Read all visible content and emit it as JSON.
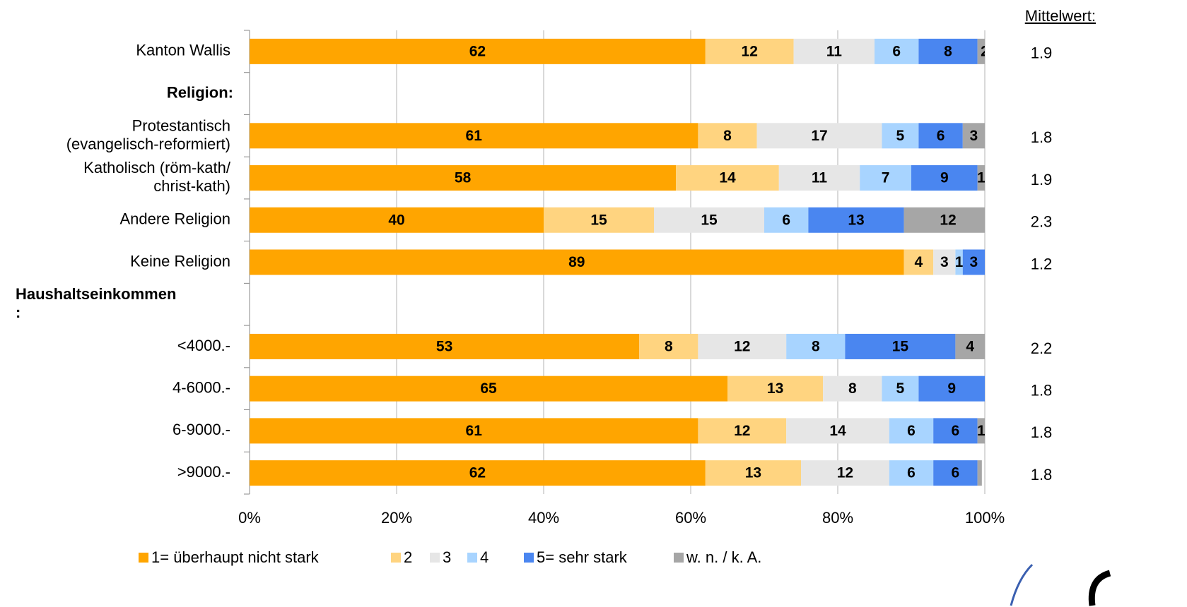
{
  "chart_data": {
    "type": "stacked_barh",
    "categories": [
      "Kanton Wallis",
      "Religion:",
      "Protestantisch\n(evangelisch-reformiert)",
      "Katholisch (röm-kath/\nchrist-kath)",
      "Andere Religion",
      "Keine Religion",
      "Haushaltseinkommen\n:",
      "<4000.-",
      "4-6000.-",
      "6-9000.-",
      ">9000.-"
    ],
    "series": [
      {
        "name": "1= überhaupt nicht stark",
        "color": "#FFA500",
        "values": [
          62,
          null,
          61,
          58,
          40,
          89,
          null,
          53,
          65,
          61,
          62
        ]
      },
      {
        "name": "2",
        "color": "#FFD480",
        "values": [
          12,
          null,
          8,
          14,
          15,
          4,
          null,
          8,
          13,
          12,
          13
        ]
      },
      {
        "name": "3",
        "color": "#E6E6E6",
        "values": [
          11,
          null,
          17,
          11,
          15,
          3,
          null,
          12,
          8,
          14,
          12
        ]
      },
      {
        "name": "4",
        "color": "#A8D4FF",
        "values": [
          6,
          null,
          5,
          7,
          6,
          1,
          null,
          8,
          5,
          6,
          6
        ]
      },
      {
        "name": "5= sehr stark",
        "color": "#4A86F0",
        "values": [
          8,
          null,
          6,
          9,
          13,
          3,
          null,
          15,
          9,
          6,
          6
        ]
      },
      {
        "name": "w. n. / k. A.",
        "color": "#A6A6A6",
        "values": [
          2,
          null,
          3,
          1,
          12,
          0.4,
          null,
          4,
          0.3,
          1,
          0.6
        ]
      }
    ],
    "xlim": [
      0,
      100
    ],
    "xticks": [
      {
        "value": 0,
        "label": "0%"
      },
      {
        "value": 20,
        "label": "20%"
      },
      {
        "value": 40,
        "label": "40%"
      },
      {
        "value": 60,
        "label": "60%"
      },
      {
        "value": 80,
        "label": "80%"
      },
      {
        "value": 100,
        "label": "100%"
      }
    ],
    "grid": true,
    "legend": "bottom",
    "mean_title": "Mittelwert:",
    "mean_values": [
      1.9,
      null,
      1.8,
      1.9,
      2.3,
      1.2,
      null,
      2.2,
      1.8,
      1.8,
      1.8
    ]
  }
}
